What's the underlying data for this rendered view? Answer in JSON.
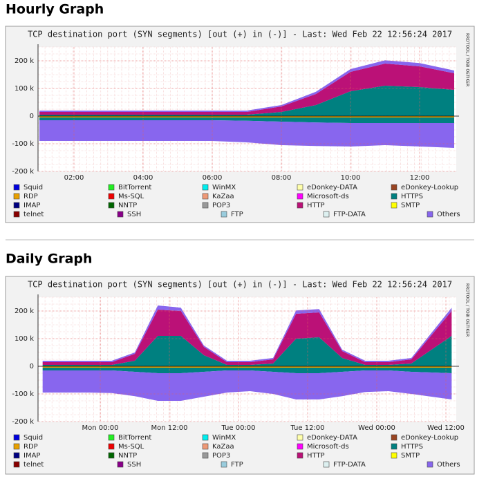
{
  "headings": [
    "Hourly Graph",
    "Daily Graph"
  ],
  "chart_data": [
    {
      "type": "area",
      "title": "TCP destination port (SYN segments)  [out (+) in (-)] - Last: Wed Feb 22 12:56:24 2017",
      "credit": "RRDTOOL / TOBI OETIKER",
      "x": [
        1,
        2,
        3,
        4,
        5,
        6,
        7,
        8,
        9,
        10,
        11,
        12,
        13
      ],
      "xlim": [
        0.96,
        13.06
      ],
      "xticks": [
        {
          "value": 2,
          "label": "02:00"
        },
        {
          "value": 4,
          "label": "04:00"
        },
        {
          "value": 6,
          "label": "06:00"
        },
        {
          "value": 8,
          "label": "08:00"
        },
        {
          "value": 10,
          "label": "10:00"
        },
        {
          "value": 12,
          "label": "12:00"
        }
      ],
      "ylim": [
        -200000,
        250000
      ],
      "yticks": [
        {
          "value": -200000,
          "label": "-200 k"
        },
        {
          "value": -100000,
          "label": "-100 k"
        },
        0,
        {
          "value": 100000,
          "label": "100 k"
        },
        {
          "value": 200000,
          "label": "200 k"
        }
      ],
      "grid": true,
      "series": [
        {
          "name": "Squid",
          "color": "#0000dd"
        },
        {
          "name": "BitTorrent",
          "color": "#22ee22"
        },
        {
          "name": "WinMX",
          "color": "#00eeee"
        },
        {
          "name": "eDonkey-DATA",
          "color": "#ffffaa"
        },
        {
          "name": "eDonkey-Lookup",
          "color": "#994422"
        },
        {
          "name": "RDP",
          "color": "#e8a000",
          "values_in": [
            -5000,
            -5000,
            -5000,
            -5000,
            -5000,
            -5000,
            -5000,
            -5000,
            -5000,
            -5000,
            -5000,
            -5000,
            -5000
          ]
        },
        {
          "name": "Ms-SQL",
          "color": "#ee0000"
        },
        {
          "name": "KaZaa",
          "color": "#ee9977"
        },
        {
          "name": "Microsoft-ds",
          "color": "#ff00ff"
        },
        {
          "name": "HTTPS",
          "color": "#008080",
          "values": [
            5000,
            5000,
            5000,
            5000,
            5000,
            5000,
            5000,
            15000,
            40000,
            90000,
            110000,
            105000,
            95000
          ],
          "values_in": [
            -10000,
            -10000,
            -10000,
            -10000,
            -10000,
            -10000,
            -12000,
            -15000,
            -18000,
            -20000,
            -20000,
            -20000,
            -20000
          ]
        },
        {
          "name": "IMAP",
          "color": "#000080"
        },
        {
          "name": "NNTP",
          "color": "#006600"
        },
        {
          "name": "POP3",
          "color": "#999999"
        },
        {
          "name": "HTTP",
          "color": "#bb1177",
          "values": [
            10000,
            10000,
            10000,
            10000,
            10000,
            10000,
            10000,
            20000,
            40000,
            70000,
            80000,
            75000,
            60000
          ]
        },
        {
          "name": "SMTP",
          "color": "#ffff00"
        },
        {
          "name": "telnet",
          "color": "#880000"
        },
        {
          "name": "SSH",
          "color": "#880088"
        },
        {
          "name": "FTP",
          "color": "#99ccdd"
        },
        {
          "name": "FTP-DATA",
          "color": "#ddf0f0"
        },
        {
          "name": "Others",
          "color": "#8866ee",
          "values": [
            5000,
            5000,
            5000,
            5000,
            5000,
            5000,
            5000,
            5000,
            8000,
            10000,
            12000,
            12000,
            10000
          ],
          "values_in": [
            -75000,
            -75000,
            -75000,
            -75000,
            -75000,
            -75000,
            -78000,
            -85000,
            -85000,
            -85000,
            -80000,
            -85000,
            -90000
          ]
        }
      ]
    },
    {
      "type": "area",
      "title": "TCP destination port (SYN segments)  [out (+) in (-)] - Last: Wed Feb 22 12:56:24 2017",
      "credit": "RRDTOOL / TOBI OETIKER",
      "x": [
        -10,
        -6,
        -2,
        2,
        6,
        10,
        14,
        18,
        22,
        26,
        30,
        34,
        38,
        42,
        46,
        50,
        54,
        61
      ],
      "xlim": [
        -10.8,
        61.8
      ],
      "xticks": [
        {
          "value": 0,
          "label": "Mon 00:00"
        },
        {
          "value": 12,
          "label": "Mon 12:00"
        },
        {
          "value": 24,
          "label": "Tue 00:00"
        },
        {
          "value": 36,
          "label": "Tue 12:00"
        },
        {
          "value": 48,
          "label": "Wed 00:00"
        },
        {
          "value": 60,
          "label": "Wed 12:00"
        }
      ],
      "ylim": [
        -200000,
        250000
      ],
      "yticks": [
        {
          "value": -200000,
          "label": "-200 k"
        },
        {
          "value": -100000,
          "label": "-100 k"
        },
        0,
        {
          "value": 100000,
          "label": "100 k"
        },
        {
          "value": 200000,
          "label": "200 k"
        }
      ],
      "grid": true,
      "series": [
        {
          "name": "Squid",
          "color": "#0000dd"
        },
        {
          "name": "BitTorrent",
          "color": "#22ee22"
        },
        {
          "name": "WinMX",
          "color": "#00eeee"
        },
        {
          "name": "eDonkey-DATA",
          "color": "#ffffaa"
        },
        {
          "name": "eDonkey-Lookup",
          "color": "#994422"
        },
        {
          "name": "RDP",
          "color": "#e8a000",
          "values_in": [
            -5000,
            -5000,
            -5000,
            -5000,
            -5000,
            -5000,
            -5000,
            -5000,
            -5000,
            -5000,
            -5000,
            -5000,
            -5000,
            -5000,
            -5000,
            -5000,
            -5000,
            -5000
          ]
        },
        {
          "name": "Ms-SQL",
          "color": "#ee0000"
        },
        {
          "name": "KaZaa",
          "color": "#ee9977"
        },
        {
          "name": "Microsoft-ds",
          "color": "#ff00ff"
        },
        {
          "name": "HTTPS",
          "color": "#008080",
          "values": [
            5000,
            5000,
            5000,
            5000,
            20000,
            110000,
            110000,
            40000,
            5000,
            5000,
            10000,
            100000,
            105000,
            30000,
            5000,
            5000,
            10000,
            110000
          ],
          "values_in": [
            -10000,
            -10000,
            -10000,
            -10000,
            -15000,
            -20000,
            -20000,
            -15000,
            -10000,
            -10000,
            -15000,
            -20000,
            -20000,
            -15000,
            -10000,
            -10000,
            -15000,
            -20000
          ]
        },
        {
          "name": "IMAP",
          "color": "#000080"
        },
        {
          "name": "NNTP",
          "color": "#006600"
        },
        {
          "name": "POP3",
          "color": "#999999"
        },
        {
          "name": "HTTP",
          "color": "#bb1177",
          "values": [
            10000,
            10000,
            10000,
            10000,
            25000,
            95000,
            90000,
            30000,
            10000,
            10000,
            15000,
            90000,
            90000,
            25000,
            10000,
            10000,
            15000,
            90000
          ]
        },
        {
          "name": "SMTP",
          "color": "#ffff00"
        },
        {
          "name": "telnet",
          "color": "#880000"
        },
        {
          "name": "SSH",
          "color": "#880088"
        },
        {
          "name": "FTP",
          "color": "#99ccdd"
        },
        {
          "name": "FTP-DATA",
          "color": "#ddf0f0"
        },
        {
          "name": "Others",
          "color": "#8866ee",
          "values": [
            5000,
            5000,
            5000,
            5000,
            5000,
            15000,
            12000,
            5000,
            5000,
            5000,
            5000,
            12000,
            12000,
            5000,
            5000,
            5000,
            5000,
            12000
          ],
          "values_in": [
            -80000,
            -80000,
            -80000,
            -82000,
            -88000,
            -100000,
            -100000,
            -90000,
            -80000,
            -75000,
            -80000,
            -95000,
            -95000,
            -88000,
            -78000,
            -75000,
            -80000,
            -95000
          ]
        }
      ]
    }
  ]
}
